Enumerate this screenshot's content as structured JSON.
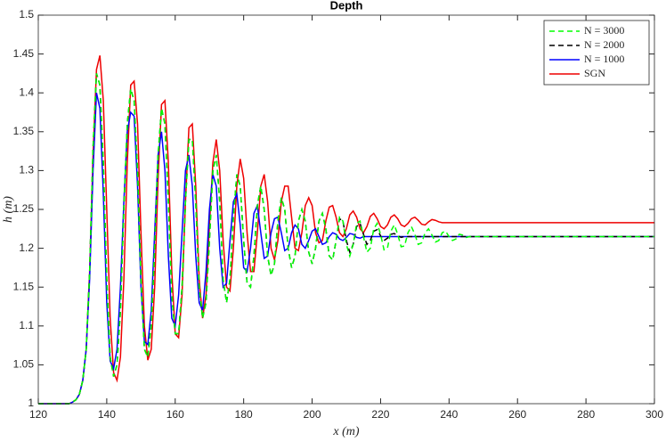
{
  "chart_data": {
    "type": "line",
    "title": "Depth",
    "x_label": "x (m)",
    "y_label": "h (m)",
    "x": [
      120,
      121,
      122,
      123,
      124,
      125,
      126,
      127,
      128,
      129,
      130,
      131,
      132,
      133,
      134,
      135,
      136,
      137,
      138,
      139,
      140,
      141,
      142,
      143,
      144,
      145,
      146,
      147,
      148,
      149,
      150,
      151,
      152,
      153,
      154,
      155,
      156,
      157,
      158,
      159,
      160,
      161,
      162,
      163,
      164,
      165,
      166,
      167,
      168,
      169,
      170,
      171,
      172,
      173,
      174,
      175,
      176,
      177,
      178,
      179,
      180,
      181,
      182,
      183,
      184,
      185,
      186,
      187,
      188,
      189,
      190,
      191,
      192,
      193,
      194,
      195,
      196,
      197,
      198,
      199,
      200,
      201,
      202,
      203,
      204,
      205,
      206,
      207,
      208,
      209,
      210,
      211,
      212,
      213,
      214,
      215,
      216,
      217,
      218,
      219,
      220,
      221,
      222,
      223,
      224,
      225,
      226,
      227,
      228,
      229,
      230,
      231,
      232,
      233,
      234,
      235,
      236,
      237,
      238,
      239,
      240,
      241,
      242,
      243,
      244,
      245,
      246,
      247,
      248,
      249,
      250,
      260,
      270,
      280,
      290,
      300
    ],
    "series": [
      {
        "name": "N = 3000",
        "color": "#00ff00",
        "dash": "dashed",
        "values": [
          1,
          1,
          1,
          1,
          1,
          1,
          1,
          1,
          1,
          1,
          1.002,
          1.005,
          1.012,
          1.03,
          1.07,
          1.17,
          1.33,
          1.425,
          1.41,
          1.31,
          1.16,
          1.06,
          1.035,
          1.05,
          1.12,
          1.25,
          1.36,
          1.405,
          1.39,
          1.3,
          1.16,
          1.07,
          1.06,
          1.1,
          1.2,
          1.32,
          1.38,
          1.36,
          1.26,
          1.14,
          1.09,
          1.09,
          1.15,
          1.26,
          1.34,
          1.34,
          1.26,
          1.15,
          1.11,
          1.13,
          1.21,
          1.3,
          1.32,
          1.26,
          1.16,
          1.13,
          1.16,
          1.24,
          1.295,
          1.28,
          1.21,
          1.155,
          1.15,
          1.19,
          1.255,
          1.28,
          1.25,
          1.19,
          1.165,
          1.18,
          1.235,
          1.265,
          1.25,
          1.2,
          1.175,
          1.19,
          1.235,
          1.25,
          1.235,
          1.195,
          1.18,
          1.2,
          1.235,
          1.245,
          1.225,
          1.19,
          1.185,
          1.21,
          1.24,
          1.235,
          1.205,
          1.19,
          1.205,
          1.232,
          1.235,
          1.215,
          1.195,
          1.2,
          1.225,
          1.232,
          1.218,
          1.198,
          1.2,
          1.222,
          1.23,
          1.218,
          1.202,
          1.203,
          1.22,
          1.228,
          1.218,
          1.205,
          1.207,
          1.22,
          1.225,
          1.217,
          1.208,
          1.21,
          1.22,
          1.222,
          1.215,
          1.21,
          1.212,
          1.218,
          1.217,
          1.214,
          1.215,
          1.215,
          1.215,
          1.215,
          1.215,
          1.215,
          1.215,
          1.215,
          1.215,
          1.215
        ]
      },
      {
        "name": "N = 2000",
        "color": "#000000",
        "dash": "dashed",
        "values": [
          1,
          1,
          1,
          1,
          1,
          1,
          1,
          1,
          1,
          1,
          1.002,
          1.005,
          1.012,
          1.03,
          1.07,
          1.17,
          1.33,
          1.425,
          1.41,
          1.31,
          1.16,
          1.06,
          1.035,
          1.05,
          1.12,
          1.25,
          1.36,
          1.405,
          1.39,
          1.3,
          1.16,
          1.07,
          1.06,
          1.1,
          1.2,
          1.32,
          1.38,
          1.36,
          1.26,
          1.14,
          1.09,
          1.09,
          1.15,
          1.26,
          1.34,
          1.34,
          1.26,
          1.15,
          1.11,
          1.13,
          1.21,
          1.3,
          1.32,
          1.26,
          1.16,
          1.13,
          1.16,
          1.24,
          1.295,
          1.28,
          1.21,
          1.155,
          1.15,
          1.19,
          1.255,
          1.28,
          1.25,
          1.19,
          1.165,
          1.18,
          1.235,
          1.265,
          1.25,
          1.2,
          1.175,
          1.19,
          1.235,
          1.25,
          1.235,
          1.195,
          1.18,
          1.2,
          1.235,
          1.245,
          1.225,
          1.19,
          1.185,
          1.21,
          1.238,
          1.235,
          1.21,
          1.195,
          1.205,
          1.228,
          1.232,
          1.218,
          1.205,
          1.21,
          1.222,
          1.224,
          1.216,
          1.21,
          1.213,
          1.218,
          1.219,
          1.216,
          1.214,
          1.215,
          1.215,
          1.215,
          1.215,
          1.215,
          1.215,
          1.215,
          1.215,
          1.215,
          1.215,
          1.215,
          1.215,
          1.215,
          1.215,
          1.215,
          1.215,
          1.215,
          1.215,
          1.215,
          1.215,
          1.215,
          1.215,
          1.215,
          1.215,
          1.215,
          1.215,
          1.215,
          1.215,
          1.215
        ]
      },
      {
        "name": "N = 1000",
        "color": "#0000ff",
        "dash": "solid",
        "values": [
          1,
          1,
          1,
          1,
          1,
          1,
          1,
          1,
          1,
          1,
          1.002,
          1.005,
          1.012,
          1.03,
          1.07,
          1.16,
          1.3,
          1.4,
          1.38,
          1.27,
          1.13,
          1.055,
          1.045,
          1.07,
          1.15,
          1.26,
          1.35,
          1.375,
          1.37,
          1.28,
          1.15,
          1.08,
          1.076,
          1.12,
          1.22,
          1.32,
          1.35,
          1.3,
          1.19,
          1.11,
          1.1,
          1.14,
          1.22,
          1.3,
          1.32,
          1.28,
          1.19,
          1.13,
          1.12,
          1.17,
          1.25,
          1.295,
          1.28,
          1.2,
          1.15,
          1.155,
          1.21,
          1.26,
          1.27,
          1.23,
          1.175,
          1.17,
          1.2,
          1.245,
          1.255,
          1.22,
          1.187,
          1.19,
          1.22,
          1.238,
          1.24,
          1.22,
          1.197,
          1.2,
          1.22,
          1.23,
          1.225,
          1.205,
          1.2,
          1.21,
          1.222,
          1.225,
          1.215,
          1.205,
          1.207,
          1.215,
          1.22,
          1.218,
          1.212,
          1.21,
          1.214,
          1.219,
          1.218,
          1.214,
          1.213,
          1.215,
          1.215,
          1.215,
          1.215,
          1.215,
          1.215,
          1.215,
          1.215,
          1.215,
          1.215,
          1.215,
          1.215,
          1.215,
          1.215,
          1.215,
          1.215,
          1.215,
          1.215,
          1.215,
          1.215,
          1.215,
          1.215,
          1.215,
          1.215,
          1.215,
          1.215,
          1.215,
          1.215,
          1.215,
          1.215,
          1.215,
          1.215,
          1.215,
          1.215,
          1.215,
          1.215,
          1.215,
          1.215,
          1.215,
          1.215,
          1.215
        ]
      },
      {
        "name": "SGN",
        "color": "#ee0000",
        "dash": "solid",
        "values": [
          1,
          1,
          1,
          1,
          1,
          1,
          1,
          1,
          1,
          1,
          1.002,
          1.005,
          1.012,
          1.03,
          1.07,
          1.17,
          1.32,
          1.43,
          1.448,
          1.39,
          1.25,
          1.11,
          1.04,
          1.03,
          1.06,
          1.16,
          1.31,
          1.41,
          1.415,
          1.36,
          1.22,
          1.1,
          1.056,
          1.07,
          1.15,
          1.29,
          1.385,
          1.39,
          1.31,
          1.17,
          1.09,
          1.085,
          1.14,
          1.26,
          1.355,
          1.36,
          1.28,
          1.16,
          1.11,
          1.14,
          1.23,
          1.31,
          1.34,
          1.3,
          1.21,
          1.15,
          1.145,
          1.2,
          1.28,
          1.315,
          1.29,
          1.22,
          1.17,
          1.17,
          1.22,
          1.28,
          1.295,
          1.26,
          1.2,
          1.185,
          1.21,
          1.26,
          1.28,
          1.28,
          1.24,
          1.2,
          1.197,
          1.22,
          1.255,
          1.265,
          1.255,
          1.22,
          1.207,
          1.21,
          1.235,
          1.253,
          1.255,
          1.24,
          1.22,
          1.215,
          1.225,
          1.243,
          1.248,
          1.24,
          1.225,
          1.22,
          1.228,
          1.241,
          1.245,
          1.238,
          1.228,
          1.225,
          1.23,
          1.24,
          1.243,
          1.238,
          1.23,
          1.228,
          1.232,
          1.238,
          1.24,
          1.236,
          1.231,
          1.23,
          1.234,
          1.237,
          1.236,
          1.234,
          1.233,
          1.233,
          1.233,
          1.233,
          1.233,
          1.233,
          1.233,
          1.233,
          1.233,
          1.233,
          1.233,
          1.233,
          1.233,
          1.233,
          1.233,
          1.233,
          1.233,
          1.233
        ]
      }
    ],
    "xlim": [
      120,
      300
    ],
    "xticks": [
      120,
      140,
      160,
      180,
      200,
      220,
      240,
      260,
      280,
      300
    ],
    "ylim": [
      1,
      1.5
    ],
    "yticks": [
      1,
      1.05,
      1.1,
      1.15,
      1.2,
      1.25,
      1.3,
      1.35,
      1.4,
      1.45,
      1.5
    ],
    "grid": false,
    "legend": "top-right"
  }
}
